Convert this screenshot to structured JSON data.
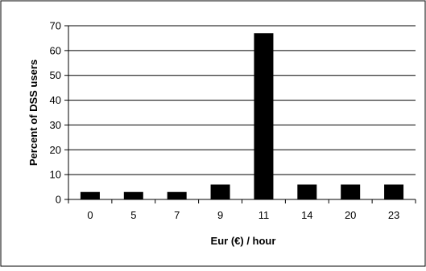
{
  "chart_data": {
    "type": "bar",
    "categories": [
      "0",
      "5",
      "7",
      "9",
      "11",
      "14",
      "20",
      "23"
    ],
    "values": [
      3,
      3,
      3,
      6,
      67,
      6,
      6,
      6
    ],
    "title": "",
    "xlabel": "Eur (€) / hour",
    "ylabel": "Percent of DSS users",
    "ylim": [
      0,
      70
    ],
    "yticks": [
      0,
      10,
      20,
      30,
      40,
      50,
      60,
      70
    ],
    "grid": true,
    "bar_color": "#000000"
  }
}
